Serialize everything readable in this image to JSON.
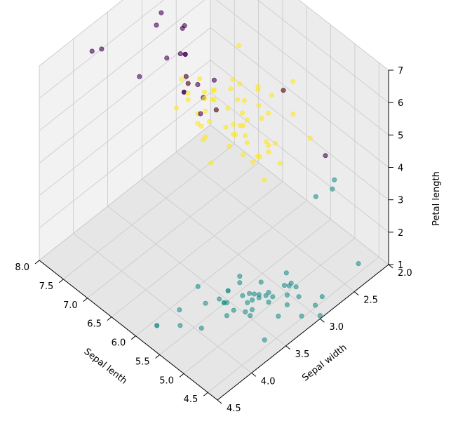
{
  "chart_data": {
    "type": "scatter3d",
    "title": "",
    "xlabel": "Sepal lenth",
    "ylabel": "Sepal width",
    "zlabel": "Petal length",
    "xlim": [
      4.3,
      8.0
    ],
    "ylim": [
      2.0,
      4.5
    ],
    "zlim": [
      1.0,
      7.0
    ],
    "x_ticks": [
      "4.5",
      "5.0",
      "5.5",
      "6.0",
      "6.5",
      "7.0",
      "7.5",
      "8.0"
    ],
    "y_ticks": [
      "2.0",
      "2.5",
      "3.0",
      "3.5",
      "4.0",
      "4.5"
    ],
    "z_ticks": [
      "1",
      "2",
      "3",
      "4",
      "5",
      "6",
      "7"
    ],
    "grid": true,
    "colors": {
      "cluster_a": "#440154",
      "cluster_b": "#21918c",
      "cluster_c": "#fde725"
    },
    "series": [
      {
        "color": "cluster_b",
        "points": [
          [
            4.4,
            2.9,
            1.4
          ],
          [
            4.5,
            2.3,
            1.3
          ],
          [
            4.6,
            3.1,
            1.5
          ],
          [
            4.6,
            3.4,
            1.4
          ],
          [
            4.7,
            3.2,
            1.3
          ],
          [
            4.8,
            3.0,
            1.4
          ],
          [
            4.8,
            3.4,
            1.6
          ],
          [
            4.9,
            3.0,
            1.4
          ],
          [
            4.9,
            3.1,
            1.5
          ],
          [
            5.0,
            3.0,
            1.6
          ],
          [
            5.0,
            3.4,
            1.5
          ],
          [
            5.0,
            3.6,
            1.4
          ],
          [
            5.0,
            3.3,
            1.4
          ],
          [
            5.1,
            3.5,
            1.4
          ],
          [
            5.1,
            3.8,
            1.5
          ],
          [
            5.1,
            3.3,
            1.7
          ],
          [
            5.2,
            3.5,
            1.5
          ],
          [
            5.2,
            4.1,
            1.5
          ],
          [
            5.3,
            3.7,
            1.5
          ],
          [
            5.4,
            3.9,
            1.7
          ],
          [
            5.4,
            3.4,
            1.7
          ],
          [
            5.4,
            3.7,
            1.5
          ],
          [
            5.5,
            4.2,
            1.4
          ],
          [
            5.5,
            3.5,
            1.3
          ],
          [
            5.7,
            4.4,
            1.5
          ],
          [
            5.7,
            3.8,
            1.7
          ],
          [
            5.8,
            4.0,
            1.2
          ],
          [
            4.3,
            3.0,
            1.1
          ],
          [
            4.4,
            3.2,
            1.3
          ],
          [
            4.6,
            3.6,
            1.0
          ],
          [
            4.7,
            3.2,
            1.6
          ],
          [
            4.8,
            3.1,
            1.6
          ],
          [
            4.9,
            3.6,
            1.4
          ],
          [
            5.0,
            3.2,
            1.2
          ],
          [
            5.0,
            3.5,
            1.6
          ],
          [
            5.1,
            3.4,
            1.5
          ],
          [
            5.1,
            3.7,
            1.5
          ],
          [
            5.1,
            3.8,
            1.9
          ],
          [
            5.2,
            3.4,
            1.4
          ],
          [
            5.3,
            3.7,
            1.5
          ],
          [
            5.4,
            3.4,
            1.5
          ],
          [
            5.5,
            3.5,
            1.3
          ],
          [
            5.0,
            3.5,
            1.3
          ],
          [
            4.8,
            3.4,
            1.9
          ],
          [
            4.9,
            2.4,
            3.3
          ],
          [
            5.0,
            2.3,
            3.3
          ],
          [
            5.1,
            2.5,
            3.0
          ],
          [
            4.4,
            3.0,
            1.3
          ],
          [
            5.0,
            3.4,
            1.6
          ],
          [
            5.7,
            4.4,
            1.5
          ]
        ]
      },
      {
        "color": "cluster_c",
        "points": [
          [
            5.5,
            2.3,
            4.0
          ],
          [
            5.6,
            2.9,
            3.6
          ],
          [
            5.6,
            3.0,
            4.5
          ],
          [
            5.7,
            2.8,
            4.5
          ],
          [
            5.7,
            2.6,
            3.5
          ],
          [
            5.7,
            3.0,
            4.2
          ],
          [
            5.7,
            2.9,
            4.2
          ],
          [
            5.8,
            2.7,
            4.1
          ],
          [
            5.8,
            2.7,
            3.9
          ],
          [
            5.8,
            2.6,
            4.0
          ],
          [
            5.9,
            3.0,
            4.2
          ],
          [
            5.9,
            3.2,
            4.8
          ],
          [
            6.0,
            2.2,
            4.0
          ],
          [
            6.0,
            2.9,
            4.5
          ],
          [
            6.0,
            2.7,
            5.1
          ],
          [
            6.0,
            3.4,
            4.5
          ],
          [
            6.1,
            2.8,
            4.0
          ],
          [
            6.1,
            2.9,
            4.7
          ],
          [
            6.1,
            3.0,
            4.6
          ],
          [
            6.1,
            2.8,
            4.7
          ],
          [
            6.2,
            2.2,
            4.5
          ],
          [
            6.2,
            2.9,
            4.3
          ],
          [
            6.3,
            3.3,
            4.7
          ],
          [
            6.3,
            2.5,
            4.9
          ],
          [
            6.3,
            2.3,
            4.4
          ],
          [
            6.4,
            3.2,
            4.5
          ],
          [
            6.4,
            2.9,
            4.3
          ],
          [
            6.5,
            2.8,
            4.6
          ],
          [
            6.6,
            2.9,
            4.6
          ],
          [
            6.6,
            3.0,
            4.4
          ],
          [
            6.7,
            3.1,
            4.4
          ],
          [
            6.7,
            3.0,
            5.0
          ],
          [
            6.7,
            3.1,
            4.7
          ],
          [
            6.8,
            2.8,
            4.8
          ],
          [
            6.9,
            3.1,
            4.9
          ],
          [
            7.0,
            3.2,
            4.7
          ],
          [
            5.8,
            2.7,
            5.1
          ],
          [
            5.8,
            2.8,
            5.1
          ],
          [
            6.0,
            2.2,
            5.0
          ],
          [
            6.1,
            3.0,
            4.9
          ],
          [
            6.2,
            2.8,
            4.8
          ],
          [
            6.3,
            2.7,
            4.9
          ],
          [
            6.3,
            2.8,
            5.1
          ],
          [
            6.3,
            2.5,
            5.0
          ],
          [
            6.4,
            2.7,
            5.3
          ],
          [
            6.4,
            3.2,
            5.3
          ],
          [
            6.4,
            2.8,
            5.6
          ],
          [
            6.5,
            3.0,
            5.2
          ],
          [
            6.5,
            3.0,
            5.5
          ],
          [
            6.7,
            2.5,
            5.8
          ],
          [
            6.7,
            3.0,
            5.2
          ],
          [
            6.8,
            3.0,
            5.5
          ],
          [
            6.8,
            3.2,
            5.9
          ],
          [
            6.9,
            3.1,
            5.1
          ],
          [
            6.9,
            3.1,
            5.4
          ],
          [
            6.9,
            3.2,
            5.7
          ],
          [
            5.9,
            3.0,
            5.1
          ],
          [
            6.2,
            3.4,
            5.4
          ],
          [
            6.3,
            2.9,
            5.6
          ],
          [
            6.4,
            3.1,
            5.5
          ]
        ]
      },
      {
        "color": "cluster_a",
        "points": [
          [
            7.1,
            3.0,
            5.9
          ],
          [
            7.2,
            3.6,
            6.1
          ],
          [
            7.2,
            3.2,
            6.0
          ],
          [
            7.2,
            3.0,
            5.8
          ],
          [
            7.3,
            2.9,
            6.3
          ],
          [
            7.4,
            2.8,
            6.1
          ],
          [
            7.6,
            3.0,
            6.6
          ],
          [
            7.7,
            3.8,
            6.7
          ],
          [
            7.7,
            2.6,
            6.9
          ],
          [
            7.7,
            2.8,
            6.7
          ],
          [
            7.7,
            3.0,
            6.1
          ],
          [
            7.9,
            3.8,
            6.4
          ],
          [
            6.5,
            3.0,
            5.8
          ],
          [
            6.7,
            3.3,
            5.7
          ],
          [
            6.7,
            3.1,
            5.6
          ],
          [
            6.8,
            3.2,
            5.9
          ],
          [
            6.9,
            3.1,
            5.4
          ],
          [
            6.3,
            3.3,
            6.0
          ],
          [
            6.5,
            3.2,
            5.1
          ],
          [
            6.7,
            3.3,
            5.7
          ],
          [
            6.2,
            2.2,
            4.5
          ],
          [
            4.9,
            2.5,
            4.5
          ],
          [
            7.1,
            3.0,
            5.9
          ],
          [
            6.6,
            2.9,
            4.6
          ]
        ]
      }
    ]
  }
}
